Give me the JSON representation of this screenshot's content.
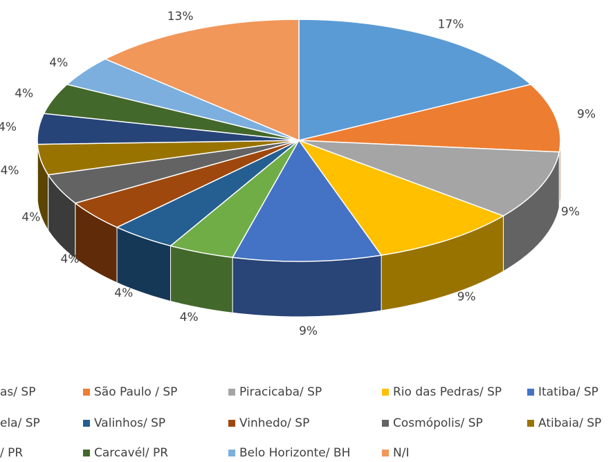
{
  "chart_data": {
    "type": "pie3d",
    "categories": [
      "as/ SP",
      "São Paulo / SP",
      "Piracicaba/ SP",
      "Rio das Pedras/ SP",
      "Itatiba/ SP",
      "ela/ SP",
      "Valinhos/ SP",
      "Vinhedo/ SP",
      "Cosmópolis/ SP",
      "Atibaia/ SP",
      "/ PR",
      "Carcavél/ PR",
      "Belo Horizonte/ BH",
      "N/I"
    ],
    "values": [
      17,
      9,
      9,
      9,
      9,
      4,
      4,
      4,
      4,
      4,
      4,
      4,
      4,
      13
    ],
    "value_labels": [
      "17%",
      "9%",
      "9%",
      "9%",
      "9%",
      "4%",
      "4%",
      "4%",
      "4%",
      "4%",
      "4%",
      "4%",
      "4%",
      "13%"
    ],
    "colors": [
      "#5b9bd5",
      "#ed7d31",
      "#a5a5a5",
      "#ffc000",
      "#4472c4",
      "#70ad47",
      "#255e91",
      "#9e480e",
      "#636363",
      "#997300",
      "#264478",
      "#43682b",
      "#7cafdd",
      "#f1975a"
    ],
    "legend": "bottom"
  }
}
